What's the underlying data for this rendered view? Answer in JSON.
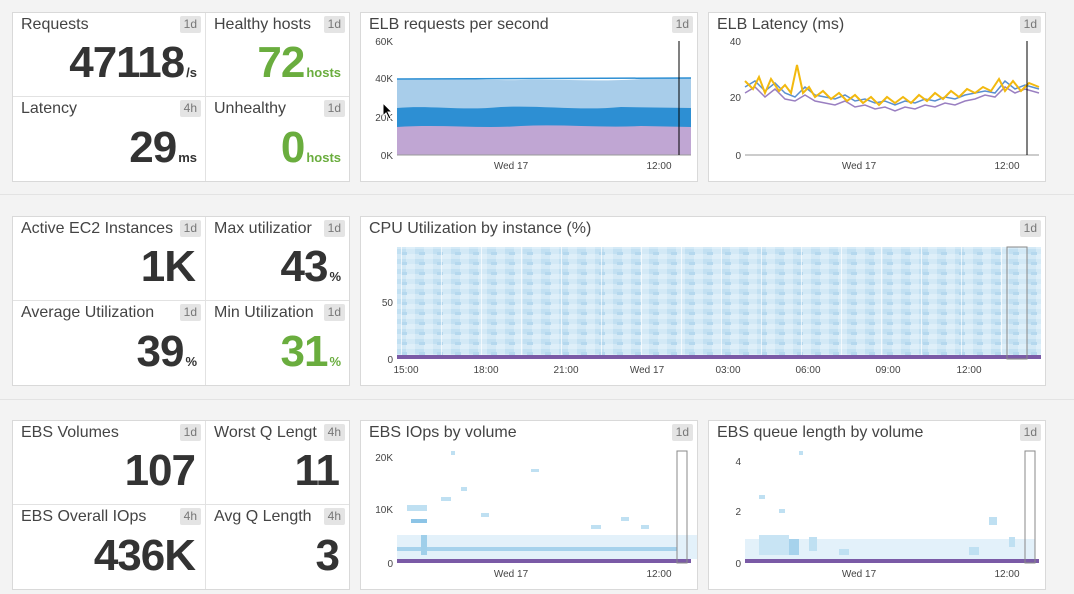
{
  "row1": {
    "tiles": [
      {
        "title": "Requests",
        "badge": "1d",
        "value": "47118",
        "unit": "/s",
        "green": false
      },
      {
        "title": "Healthy hosts",
        "badge": "1d",
        "value": "72",
        "unit": "hosts",
        "green": true
      },
      {
        "title": "Latency",
        "badge": "4h",
        "value": "29",
        "unit": "ms",
        "green": false
      },
      {
        "title": "Unhealthy",
        "badge": "1d",
        "value": "0",
        "unit": "hosts",
        "green": true
      }
    ],
    "elb_requests": {
      "title": "ELB requests per second",
      "badge": "1d",
      "yticks": [
        "60K",
        "40K",
        "20K",
        "0K"
      ],
      "xticks": [
        "Wed 17",
        "12:00"
      ]
    },
    "elb_latency": {
      "title": "ELB Latency (ms)",
      "badge": "1d",
      "yticks": [
        "40",
        "20",
        "0"
      ],
      "xticks": [
        "Wed 17",
        "12:00"
      ]
    }
  },
  "row2": {
    "tiles": [
      {
        "title": "Active EC2 Instances",
        "badge": "1d",
        "value": "1K",
        "unit": "",
        "green": false
      },
      {
        "title": "Max utilizatior",
        "badge": "1d",
        "value": "43",
        "unit": "%",
        "green": false
      },
      {
        "title": "Average Utilization",
        "badge": "1d",
        "value": "39",
        "unit": "%",
        "green": false
      },
      {
        "title": "Min Utilization",
        "badge": "1d",
        "value": "31",
        "unit": "%",
        "green": true
      }
    ],
    "cpu": {
      "title": "CPU Utilization by instance (%)",
      "badge": "1d",
      "yticks": [
        "50",
        "0"
      ],
      "xticks": [
        "15:00",
        "18:00",
        "21:00",
        "Wed 17",
        "03:00",
        "06:00",
        "09:00",
        "12:00"
      ]
    }
  },
  "row3": {
    "tiles": [
      {
        "title": "EBS Volumes",
        "badge": "1d",
        "value": "107",
        "unit": "",
        "green": false
      },
      {
        "title": "Worst Q Lengt",
        "badge": "4h",
        "value": "11",
        "unit": "",
        "green": false
      },
      {
        "title": "EBS Overall IOps",
        "badge": "4h",
        "value": "436K",
        "unit": "",
        "green": false
      },
      {
        "title": "Avg Q Length",
        "badge": "4h",
        "value": "3",
        "unit": "",
        "green": false
      }
    ],
    "ebs_iops": {
      "title": "EBS IOps by volume",
      "badge": "1d",
      "yticks": [
        "20K",
        "10K",
        "0"
      ],
      "xticks": [
        "Wed 17",
        "12:00"
      ]
    },
    "ebs_queue": {
      "title": "EBS queue length by volume",
      "badge": "1d",
      "yticks": [
        "4",
        "2",
        "0"
      ],
      "xticks": [
        "Wed 17",
        "12:00"
      ]
    }
  },
  "colors": {
    "green": "#6aad3e",
    "area_light": "#a8cdea",
    "area_mid": "#2d8fd3",
    "area_purple": "#c0a6d3",
    "heat": "#cfe7f5",
    "line_yellow": "#f2b90f",
    "line_blue": "#5a8fd0",
    "line_purple": "#9a7fc1"
  }
}
